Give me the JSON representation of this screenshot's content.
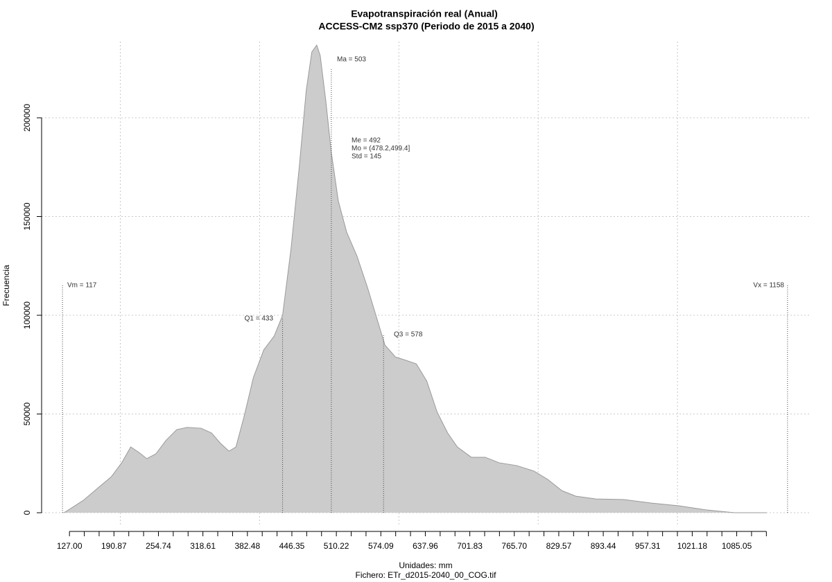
{
  "chart_data": {
    "type": "area",
    "title": "Evapotranspiración real (Anual)",
    "subtitle": "ACCESS-CM2 ssp370 (Periodo de 2015 a 2040)",
    "xlabel": "Unidades: mm",
    "caption": "Fichero: ETr_d2015-2040_00_COG.tif",
    "ylabel": "Frecuencia",
    "color": "#cccccc",
    "line_color": "#999999",
    "x": [
      119,
      127,
      147,
      167,
      187,
      202,
      215,
      227,
      238,
      251,
      266,
      281,
      296,
      316,
      331,
      344,
      356,
      366,
      378,
      391,
      406,
      421,
      433,
      445,
      457,
      467,
      475,
      482,
      487,
      495,
      503,
      513,
      525,
      540,
      555,
      570,
      580,
      595,
      610,
      625,
      640,
      655,
      670,
      684,
      704,
      724,
      744,
      769,
      794,
      814,
      834,
      854,
      883,
      923,
      963,
      1003,
      1042,
      1082,
      1128
    ],
    "values": [
      0,
      1750,
      6300,
      12300,
      18200,
      25300,
      33300,
      30500,
      27400,
      29800,
      36800,
      42100,
      43200,
      42800,
      40400,
      35100,
      31200,
      33300,
      49100,
      68400,
      82500,
      89500,
      100000,
      133300,
      175400,
      214000,
      233300,
      236800,
      231600,
      208800,
      182500,
      157900,
      142100,
      129800,
      114000,
      96500,
      84900,
      78900,
      77200,
      75400,
      66700,
      50900,
      40400,
      33300,
      28100,
      28100,
      25300,
      23900,
      21100,
      16800,
      11200,
      8400,
      7000,
      6700,
      4900,
      3500,
      1400,
      0,
      0
    ],
    "xlim": [
      87,
      1192
    ],
    "ylim": [
      -7000,
      238600
    ],
    "yticks": [
      0,
      50000,
      100000,
      150000,
      200000
    ],
    "xticks": [
      {
        "value": 127,
        "label": "127.00"
      },
      {
        "value": 190.87,
        "label": "190.87"
      },
      {
        "value": 254.74,
        "label": "254.74"
      },
      {
        "value": 318.61,
        "label": "318.61"
      },
      {
        "value": 382.48,
        "label": "382.48"
      },
      {
        "value": 446.35,
        "label": "446.35"
      },
      {
        "value": 510.22,
        "label": "510.22"
      },
      {
        "value": 574.09,
        "label": "574.09"
      },
      {
        "value": 637.96,
        "label": "637.96"
      },
      {
        "value": 701.83,
        "label": "701.83"
      },
      {
        "value": 765.7,
        "label": "765.70"
      },
      {
        "value": 829.57,
        "label": "829.57"
      },
      {
        "value": 893.44,
        "label": "893.44"
      },
      {
        "value": 957.31,
        "label": "957.31"
      },
      {
        "value": 1021.18,
        "label": "1021.18"
      },
      {
        "value": 1085.05,
        "label": "1085.05"
      }
    ],
    "xgrid": [
      200,
      400,
      600,
      800,
      1000
    ],
    "grid": true,
    "markers": [
      {
        "label": "Vm = 117",
        "x": 117
      },
      {
        "label": "Q1 = 433",
        "x": 433
      },
      {
        "label": "Ma = 503",
        "x": 503
      },
      {
        "label": "Q3 = 578",
        "x": 578
      },
      {
        "label": "Vx = 1158",
        "x": 1158
      }
    ],
    "stats": [
      "Me = 492",
      "Mo = (478.2,499.4]",
      "Std = 145"
    ]
  }
}
